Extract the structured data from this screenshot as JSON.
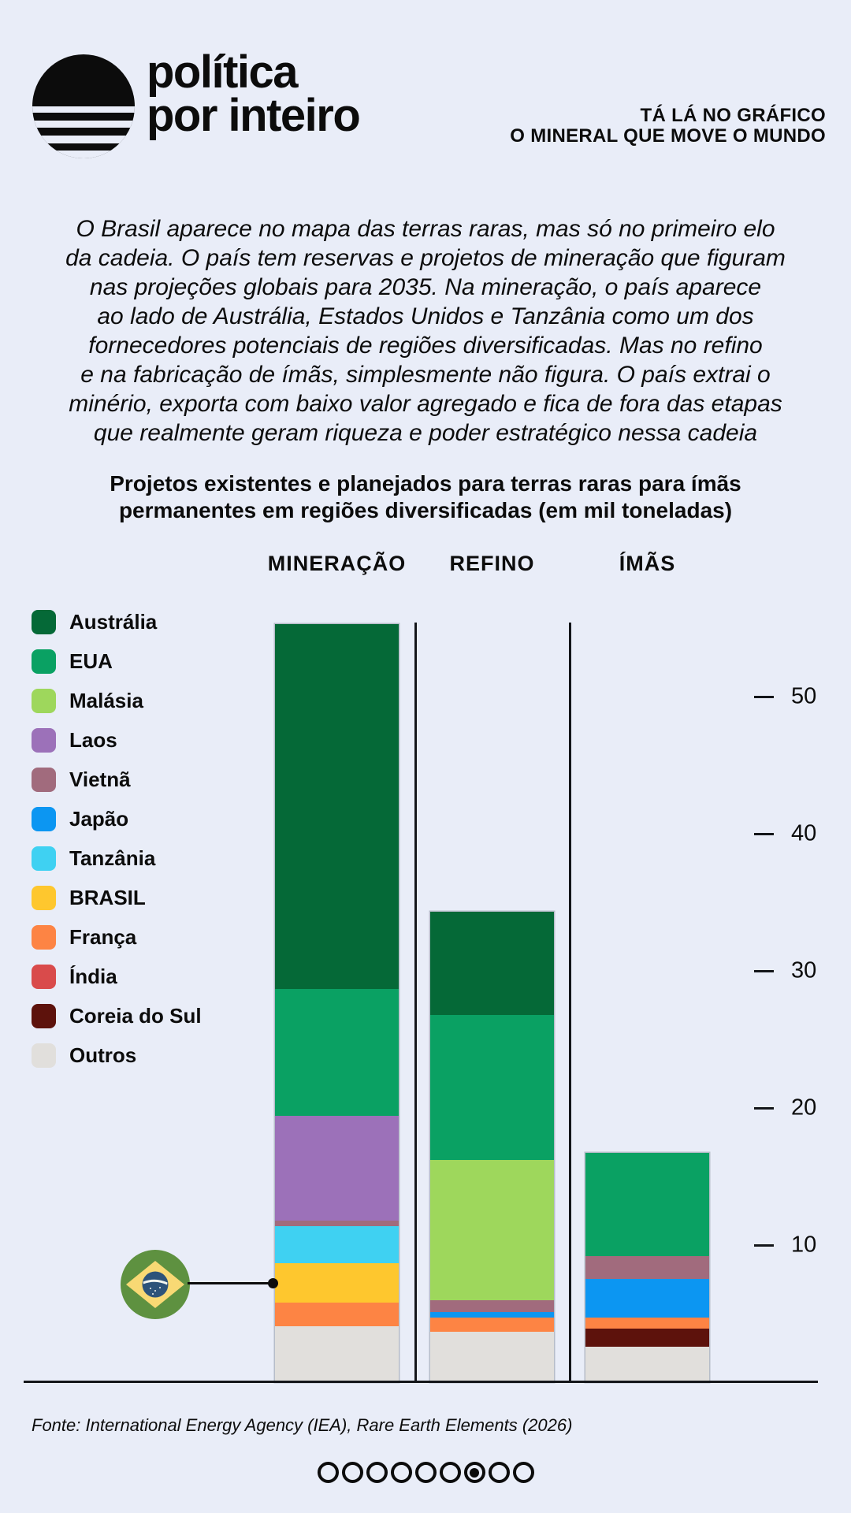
{
  "page": {
    "background": "#e9edf8",
    "text_color": "#0c0c0c"
  },
  "header": {
    "logo": "politica-por-inteiro-sun-logo",
    "brand_line1": "política",
    "brand_line2": "por inteiro",
    "kicker_line1": "TÁ LÁ NO GRÁFICO",
    "kicker_line2": "O MINERAL QUE MOVE O MUNDO"
  },
  "intro": {
    "lines": [
      "O Brasil aparece no mapa das terras raras, mas só no primeiro elo",
      "da cadeia. O país tem reservas e projetos de mineração que figuram",
      "nas projeções globais para 2035. Na mineração, o país aparece",
      "ao lado de Austrália, Estados Unidos e Tanzânia como um dos",
      "fornecedores potenciais de regiões diversificadas. Mas no refino",
      "e na fabricação de ímãs, simplesmente não figura. O país extrai o",
      "minério, exporta com baixo valor agregado e fica de fora das etapas",
      "que realmente geram riqueza e poder estratégico nessa cadeia"
    ]
  },
  "chart_data": {
    "type": "bar",
    "stacked": true,
    "title_line1": "Projetos existentes e planejados para terras raras para ímãs",
    "title_line2": "permanentes em regiões diversificadas (em mil toneladas)",
    "unit": "mil toneladas",
    "categories": [
      "MINERAÇÃO",
      "REFINO",
      "ÍMÃS"
    ],
    "y_ticks": [
      10,
      20,
      30,
      40,
      50
    ],
    "ylim": [
      0,
      55.5
    ],
    "grid": false,
    "legend_position": "left",
    "series": [
      {
        "name": "Austrália",
        "color": "#056937",
        "values": [
          26.6,
          7.5,
          0
        ]
      },
      {
        "name": "EUA",
        "color": "#0aa163",
        "values": [
          9.3,
          10.6,
          7.5
        ]
      },
      {
        "name": "Malásia",
        "color": "#9ed75c",
        "values": [
          0,
          10.2,
          0
        ]
      },
      {
        "name": "Laos",
        "color": "#9c71b9",
        "values": [
          7.6,
          0,
          0
        ]
      },
      {
        "name": "Vietnã",
        "color": "#a16b7d",
        "values": [
          0.4,
          0.9,
          1.7
        ]
      },
      {
        "name": "Japão",
        "color": "#0c96f2",
        "values": [
          0,
          0.4,
          2.8
        ]
      },
      {
        "name": "Tanzânia",
        "color": "#3fd1f2",
        "values": [
          2.7,
          0,
          0
        ]
      },
      {
        "name": "BRASIL",
        "color": "#fec72e",
        "values": [
          2.9,
          0,
          0
        ]
      },
      {
        "name": "França",
        "color": "#fd8444",
        "values": [
          1.7,
          1.0,
          0.8
        ]
      },
      {
        "name": "Índia",
        "color": "#d94b4b",
        "values": [
          0,
          0,
          0
        ]
      },
      {
        "name": "Coreia do Sul",
        "color": "#5d120c",
        "values": [
          0,
          0,
          1.3
        ]
      },
      {
        "name": "Outros",
        "color": "#e1dfdc",
        "values": [
          4.1,
          3.7,
          2.6
        ]
      }
    ],
    "annotation": {
      "icon": "brazil-flag",
      "points_to_series": "BRASIL",
      "points_to_category": "MINERAÇÃO"
    }
  },
  "footer": {
    "source": "Fonte: International Energy Agency (IEA), Rare Earth Elements (2026)"
  },
  "pagination": {
    "count": 9,
    "active_index": 6
  }
}
